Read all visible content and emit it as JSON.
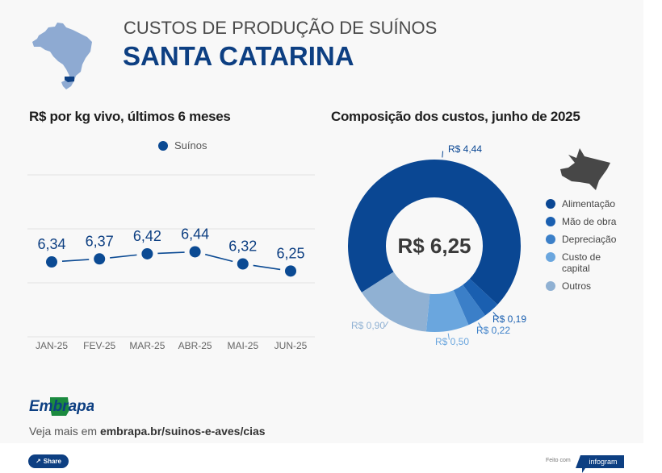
{
  "header": {
    "kicker": "CUSTOS DE PRODUÇÃO DE SUÍNOS",
    "title": "SANTA CATARINA",
    "map_icon": "brazil-map-icon",
    "highlight_state": "Santa Catarina"
  },
  "colors": {
    "primary": "#0d3f82",
    "line_series": "#0b4a93",
    "map_base": "#8eaad2",
    "map_highlight": "#0d3f82"
  },
  "chart_data": [
    {
      "type": "line",
      "title": "R$ por kg vivo, últimos 6 meses",
      "legend": [
        "Suínos"
      ],
      "legend_position": "top-center",
      "categories": [
        "JAN-25",
        "FEV-25",
        "MAR-25",
        "ABR-25",
        "MAI-25",
        "JUN-25"
      ],
      "series": [
        {
          "name": "Suínos",
          "values": [
            6.34,
            6.37,
            6.42,
            6.44,
            6.32,
            6.25
          ],
          "labels": [
            "6,34",
            "6,37",
            "6,42",
            "6,44",
            "6,32",
            "6,25"
          ],
          "color": "#0b4a93"
        }
      ],
      "xlabel": "",
      "ylabel": "",
      "ylim": [
        5.6,
        7.2
      ],
      "grid": true,
      "yaxis_visible": false
    },
    {
      "type": "pie",
      "donut": true,
      "title": "Composição dos custos, junho de 2025",
      "center_label": "R$ 6,25",
      "total": 6.25,
      "legend_position": "right",
      "slices": [
        {
          "name": "Alimentação",
          "value": 4.44,
          "label": "R$ 4,44",
          "color": "#0a4793"
        },
        {
          "name": "Mão de obra",
          "value": 0.19,
          "label": "R$ 0,19",
          "color": "#1a5fb0"
        },
        {
          "name": "Depreciação",
          "value": 0.22,
          "label": "R$ 0,22",
          "color": "#3b7fc8"
        },
        {
          "name": "Custo de capital",
          "value": 0.5,
          "label": "R$ 0,50",
          "color": "#6aa6de"
        },
        {
          "name": "Outros",
          "value": 0.9,
          "label": "R$ 0,90",
          "color": "#90b1d3"
        }
      ]
    }
  ],
  "legend_right": [
    {
      "label": "Alimentação"
    },
    {
      "label": "Mão de obra"
    },
    {
      "label": "Depreciação"
    },
    {
      "label": "Custo de\ncapital"
    },
    {
      "label": "Outros"
    }
  ],
  "footer": {
    "logo_text": "Embrapa",
    "see_more_prefix": "Veja mais em ",
    "see_more_link": "embrapa.br/suinos-e-aves/cias",
    "share_label": "Share",
    "made_with": "Feito com",
    "infogram_label": "infogram"
  }
}
